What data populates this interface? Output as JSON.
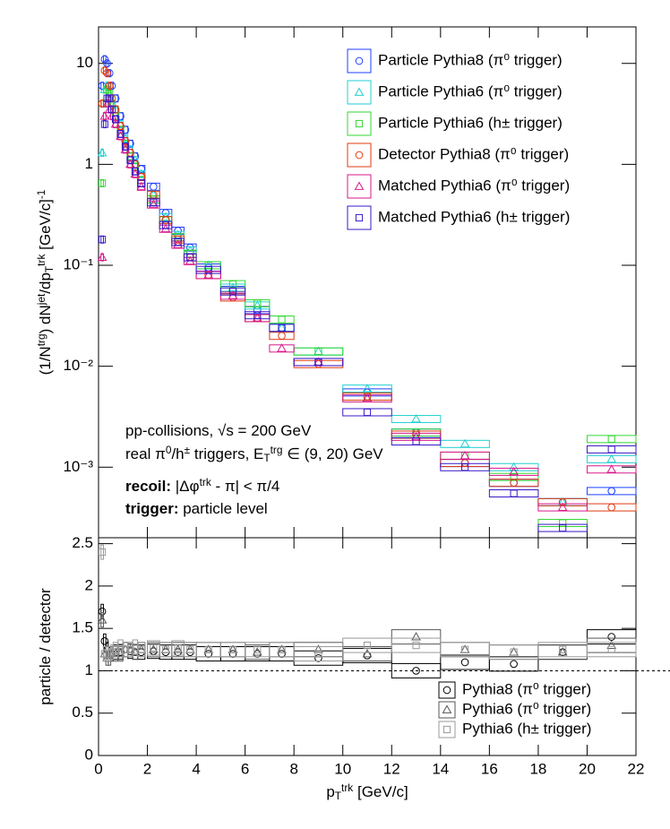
{
  "chart_data": [
    {
      "type": "scatter",
      "yscale": "log",
      "ylabel": [
        "(1/N",
        {
          "sup": "trg"
        },
        ") dN",
        {
          "sup": "jet"
        },
        "/dp",
        {
          "sub": "T"
        },
        {
          "sup": "trk"
        },
        " [GeV/c]",
        {
          "sup": "-1"
        }
      ],
      "xlim": [
        0,
        22
      ],
      "xticks": [
        0,
        2,
        4,
        6,
        8,
        10,
        12,
        14,
        16,
        18,
        20,
        22
      ],
      "ylim": [
        0.0002,
        23
      ],
      "yticks": [
        {
          "value": 0.001,
          "label": "10⁻³"
        },
        {
          "value": 0.01,
          "label": "10⁻²"
        },
        {
          "value": 0.1,
          "label": "10⁻¹"
        },
        1,
        10
      ],
      "x": [
        0.15,
        0.25,
        0.35,
        0.45,
        0.55,
        0.7,
        0.9,
        1.1,
        1.3,
        1.5,
        1.75,
        2.25,
        2.75,
        3.25,
        3.75,
        4.5,
        5.5,
        6.5,
        7.5,
        9,
        11,
        13,
        15,
        17,
        19,
        21
      ],
      "xerr": [
        0.05,
        0.05,
        0.05,
        0.05,
        0.05,
        0.1,
        0.1,
        0.1,
        0.1,
        0.1,
        0.15,
        0.25,
        0.25,
        0.25,
        0.25,
        0.5,
        0.5,
        0.5,
        0.5,
        1,
        1,
        1,
        1,
        1,
        1,
        1
      ],
      "legend": "upper right",
      "series": [
        {
          "name": "Particle Pythia8 (π⁰ trigger)",
          "color": "#1f3fff",
          "marker": "circle",
          "values": [
            6,
            11,
            10,
            8,
            6,
            4.5,
            3,
            2.2,
            1.6,
            1.2,
            0.9,
            0.6,
            0.33,
            0.22,
            0.15,
            0.095,
            0.057,
            0.036,
            0.024,
            0.011,
            0.0055,
            0.0022,
            0.0011,
            0.0007,
            0.00045,
            0.00058
          ]
        },
        {
          "name": "Particle Pythia6 (π⁰ trigger)",
          "color": "#22d0d0",
          "marker": "triangle",
          "values": [
            1.3,
            5.5,
            6,
            5,
            4,
            3.5,
            2.5,
            1.8,
            1.4,
            1.1,
            0.8,
            0.5,
            0.3,
            0.2,
            0.14,
            0.1,
            0.06,
            0.04,
            0.024,
            0.014,
            0.006,
            0.003,
            0.0017,
            0.001,
            0.00045,
            0.0012
          ]
        },
        {
          "name": "Particle Pythia6 (h± trigger)",
          "color": "#33d633",
          "marker": "square",
          "values": [
            0.65,
            4,
            5.5,
            5,
            4,
            3,
            2.2,
            1.6,
            1.2,
            0.95,
            0.7,
            0.45,
            0.28,
            0.19,
            0.13,
            0.1,
            0.065,
            0.042,
            0.029,
            0.014,
            0.005,
            0.0022,
            0.0013,
            0.0008,
            0.00028,
            0.0019
          ]
        },
        {
          "name": "Detector Pythia8 (π⁰ trigger)",
          "color": "#e03a10",
          "marker": "circle",
          "values": [
            4,
            8.5,
            8,
            6,
            4.5,
            3.5,
            2.4,
            1.7,
            1.3,
            1.0,
            0.75,
            0.5,
            0.28,
            0.18,
            0.12,
            0.08,
            0.048,
            0.03,
            0.02,
            0.0105,
            0.005,
            0.0021,
            0.0011,
            0.0007,
            0.00045,
            0.0004
          ]
        },
        {
          "name": "Matched Pythia6 (π⁰ trigger)",
          "color": "#d8188a",
          "marker": "triangle",
          "values": [
            0.12,
            3,
            4,
            3.5,
            3,
            2.5,
            1.9,
            1.4,
            1.0,
            0.8,
            0.6,
            0.4,
            0.23,
            0.16,
            0.11,
            0.08,
            0.05,
            0.03,
            0.015,
            0.011,
            0.0048,
            0.002,
            0.0013,
            0.0009,
            0.0004,
            0.00095
          ]
        },
        {
          "name": "Matched Pythia6 (h± trigger)",
          "color": "#3a18c8",
          "marker": "square",
          "values": [
            0.18,
            2.5,
            4.5,
            4.5,
            3.5,
            2.8,
            2,
            1.5,
            1.1,
            0.85,
            0.65,
            0.42,
            0.25,
            0.17,
            0.12,
            0.09,
            0.055,
            0.032,
            0.024,
            0.011,
            0.0035,
            0.0018,
            0.001,
            0.00055,
            0.00025,
            0.0015
          ]
        }
      ],
      "annotations": [
        [
          "pp-collisions, √s = 200 GeV"
        ],
        [
          "real π",
          {
            "sup": "0"
          },
          "/h",
          {
            "sup": "±"
          },
          " triggers, E",
          {
            "sub": "T"
          },
          {
            "sup": "trg"
          },
          " ∈ (9, 20) GeV"
        ],
        [
          {
            "b": "recoil:"
          },
          " |Δφ",
          {
            "sup": "trk"
          },
          " - π| < π/4"
        ],
        [
          {
            "b": "trigger:"
          },
          " particle level"
        ]
      ]
    },
    {
      "type": "scatter",
      "xlabel": [
        "p",
        {
          "sub": "T"
        },
        {
          "sup": "trk"
        },
        " [GeV/c]"
      ],
      "ylabel": [
        "particle / detector"
      ],
      "xlim": [
        0,
        22
      ],
      "xticks": [
        0,
        2,
        4,
        6,
        8,
        10,
        12,
        14,
        16,
        18,
        20,
        22
      ],
      "ylim": [
        0,
        2.57
      ],
      "yticks": [
        0,
        0.5,
        1,
        1.5,
        2,
        2.5
      ],
      "reference_line": 1,
      "x": [
        0.15,
        0.25,
        0.35,
        0.45,
        0.55,
        0.7,
        0.9,
        1.1,
        1.3,
        1.5,
        1.75,
        2.25,
        2.75,
        3.25,
        3.75,
        4.5,
        5.5,
        6.5,
        7.5,
        9,
        11,
        13,
        15,
        17,
        19,
        21
      ],
      "xerr": [
        0.05,
        0.05,
        0.05,
        0.05,
        0.05,
        0.1,
        0.1,
        0.1,
        0.1,
        0.1,
        0.15,
        0.25,
        0.25,
        0.25,
        0.25,
        0.5,
        0.5,
        0.5,
        0.5,
        1,
        1,
        1,
        1,
        1,
        1,
        1
      ],
      "legend": "lower right",
      "series": [
        {
          "name": "Pythia8 (π⁰ trigger)",
          "color": "#000000",
          "marker": "circle",
          "values": [
            1.7,
            1.35,
            1.25,
            1.2,
            1.2,
            1.22,
            1.22,
            1.25,
            1.23,
            1.22,
            1.22,
            1.23,
            1.22,
            1.22,
            1.22,
            1.2,
            1.2,
            1.2,
            1.2,
            1.15,
            1.18,
            1.0,
            1.1,
            1.08,
            1.22,
            1.4
          ]
        },
        {
          "name": "Pythia6 (π⁰ trigger)",
          "color": "#555555",
          "marker": "triangle",
          "values": [
            1.6,
            1.2,
            1.15,
            1.15,
            1.2,
            1.2,
            1.2,
            1.25,
            1.25,
            1.22,
            1.25,
            1.25,
            1.25,
            1.25,
            1.25,
            1.25,
            1.25,
            1.22,
            1.25,
            1.25,
            1.2,
            1.4,
            1.25,
            1.22,
            1.22,
            1.3
          ]
        },
        {
          "name": "Pythia6 (h± trigger)",
          "color": "#999999",
          "marker": "square",
          "values": [
            2.4,
            1.2,
            1.2,
            1.2,
            1.22,
            1.25,
            1.28,
            1.25,
            1.25,
            1.28,
            1.25,
            1.27,
            1.25,
            1.27,
            1.25,
            1.25,
            1.25,
            1.25,
            1.25,
            1.2,
            1.3,
            1.3,
            1.25,
            1.22,
            1.25,
            1.25
          ]
        }
      ]
    }
  ]
}
